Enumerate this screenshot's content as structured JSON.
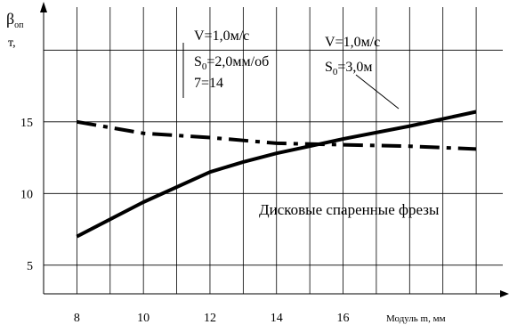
{
  "chart_data": {
    "type": "line",
    "ylabel_main": "β",
    "ylabel_sub": "оп",
    "ylabel_unit": "т,",
    "xlabel": "Модуль m, мм",
    "x_ticks": [
      "8",
      "10",
      "12",
      "14",
      "16"
    ],
    "y_ticks": [
      "5",
      "10",
      "15"
    ],
    "xlim": [
      7,
      20.8
    ],
    "ylim": [
      3,
      23
    ],
    "grid": true,
    "series": [
      {
        "style": "dash-dot",
        "color": "#000000",
        "x": [
          8,
          10,
          12,
          14,
          16,
          18,
          20
        ],
        "y": [
          15.0,
          14.2,
          13.9,
          13.5,
          13.4,
          13.3,
          13.1
        ]
      },
      {
        "style": "solid",
        "color": "#000000",
        "x": [
          8,
          10,
          12,
          13,
          14,
          15,
          16,
          18,
          20
        ],
        "y": [
          7.0,
          9.4,
          11.5,
          12.2,
          12.8,
          13.3,
          13.8,
          14.7,
          15.7
        ]
      }
    ],
    "annotations": [
      {
        "lines": [
          {
            "base": "V=1,0м/с"
          },
          {
            "base": "S",
            "sub": "0",
            "rest": "=2,0мм/об"
          },
          {
            "base": "7=14"
          }
        ]
      },
      {
        "lines": [
          {
            "base": "V=1,0м/с"
          },
          {
            "base": "S",
            "sub": "0",
            "rest": "=3,0м"
          }
        ]
      },
      {
        "lines": [
          {
            "base": "Дисковые спаренные фрезы"
          }
        ]
      }
    ]
  }
}
